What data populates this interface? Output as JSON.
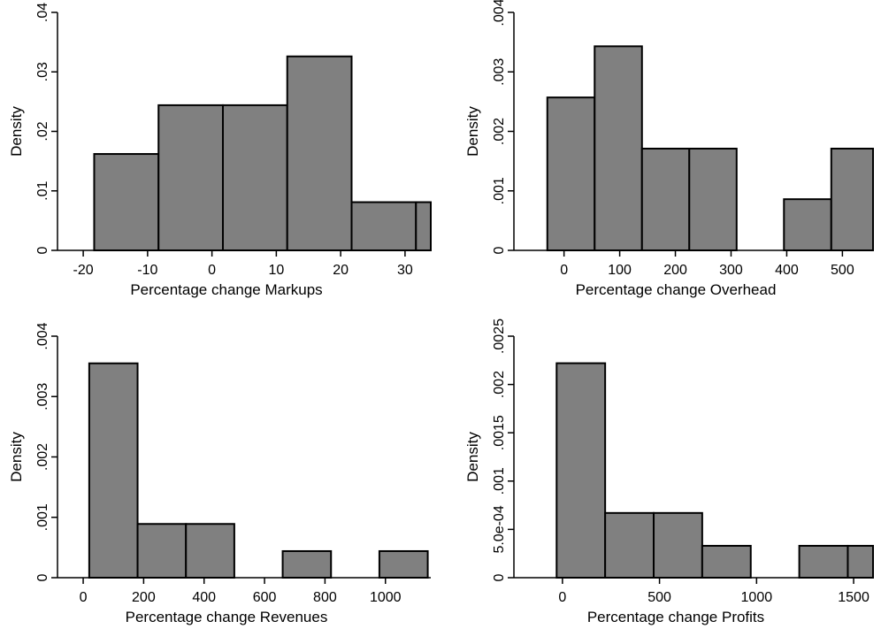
{
  "chart_data": [
    {
      "type": "bar",
      "subtype": "histogram",
      "xlabel": "Percentage change Markups",
      "ylabel": "Density",
      "xlim": [
        -24,
        34
      ],
      "ylim": [
        0,
        0.04
      ],
      "xticks": [
        -20,
        -10,
        0,
        10,
        20,
        30
      ],
      "xtick_labels": [
        "-20",
        "-10",
        "0",
        "10",
        "20",
        "30"
      ],
      "yticks": [
        0,
        0.01,
        0.02,
        0.03,
        0.04
      ],
      "ytick_labels": [
        "0",
        ".01",
        ".02",
        ".03",
        ".04"
      ],
      "bins": [
        {
          "x0": -18.3,
          "x1": -8.3,
          "density": 0.0162
        },
        {
          "x0": -8.3,
          "x1": 1.7,
          "density": 0.0244
        },
        {
          "x0": 1.7,
          "x1": 11.7,
          "density": 0.0244
        },
        {
          "x0": 11.7,
          "x1": 21.7,
          "density": 0.0326
        },
        {
          "x0": 21.7,
          "x1": 31.7,
          "density": 0.0081
        },
        {
          "x0": 31.7,
          "x1": 41.7,
          "density": 0.0081
        }
      ],
      "grid": false
    },
    {
      "type": "bar",
      "subtype": "histogram",
      "xlabel": "Percentage change Overhead",
      "ylabel": "Density",
      "xlim": [
        -90,
        555
      ],
      "ylim": [
        0,
        0.004
      ],
      "xticks": [
        0,
        100,
        200,
        300,
        400,
        500
      ],
      "xtick_labels": [
        "0",
        "100",
        "200",
        "300",
        "400",
        "500"
      ],
      "yticks": [
        0,
        0.001,
        0.002,
        0.003,
        0.004
      ],
      "ytick_labels": [
        "0",
        ".001",
        ".002",
        ".003",
        ".004"
      ],
      "bins": [
        {
          "x0": -30,
          "x1": 55,
          "density": 0.00257
        },
        {
          "x0": 55,
          "x1": 140,
          "density": 0.00343
        },
        {
          "x0": 140,
          "x1": 225,
          "density": 0.00171
        },
        {
          "x0": 225,
          "x1": 310,
          "density": 0.00171
        },
        {
          "x0": 310,
          "x1": 395,
          "density": 0
        },
        {
          "x0": 395,
          "x1": 480,
          "density": 0.00086
        },
        {
          "x0": 480,
          "x1": 565,
          "density": 0.00171
        }
      ],
      "grid": false
    },
    {
      "type": "bar",
      "subtype": "histogram",
      "xlabel": "Percentage change Revenues",
      "ylabel": "Density",
      "xlim": [
        -85,
        1150
      ],
      "ylim": [
        0,
        0.004
      ],
      "xticks": [
        0,
        200,
        400,
        600,
        800,
        1000
      ],
      "xtick_labels": [
        "0",
        "200",
        "400",
        "600",
        "800",
        "1000"
      ],
      "yticks": [
        0,
        0.001,
        0.002,
        0.003,
        0.004
      ],
      "ytick_labels": [
        "0",
        ".001",
        ".002",
        ".003",
        ".004"
      ],
      "bins": [
        {
          "x0": 20,
          "x1": 180,
          "density": 0.00355
        },
        {
          "x0": 180,
          "x1": 340,
          "density": 0.00089
        },
        {
          "x0": 340,
          "x1": 500,
          "density": 0.00089
        },
        {
          "x0": 500,
          "x1": 660,
          "density": 0
        },
        {
          "x0": 660,
          "x1": 820,
          "density": 0.00044
        },
        {
          "x0": 820,
          "x1": 980,
          "density": 0
        },
        {
          "x0": 980,
          "x1": 1140,
          "density": 0.00044
        }
      ],
      "grid": false
    },
    {
      "type": "bar",
      "subtype": "histogram",
      "xlabel": "Percentage change Profits",
      "ylabel": "Density",
      "xlim": [
        -250,
        1600
      ],
      "ylim": [
        0,
        0.0025
      ],
      "xticks": [
        0,
        500,
        1000,
        1500
      ],
      "xtick_labels": [
        "0",
        "500",
        "1000",
        "1500"
      ],
      "yticks": [
        0,
        0.0005,
        0.001,
        0.0015,
        0.002,
        0.0025
      ],
      "ytick_labels": [
        "0",
        "5.0e-04",
        ".001",
        ".0015",
        ".002",
        ".0025"
      ],
      "bins": [
        {
          "x0": -30,
          "x1": 220,
          "density": 0.00222
        },
        {
          "x0": 220,
          "x1": 470,
          "density": 0.00067
        },
        {
          "x0": 470,
          "x1": 720,
          "density": 0.00067
        },
        {
          "x0": 720,
          "x1": 970,
          "density": 0.00033
        },
        {
          "x0": 970,
          "x1": 1220,
          "density": 0
        },
        {
          "x0": 1220,
          "x1": 1470,
          "density": 0.00033
        },
        {
          "x0": 1470,
          "x1": 1720,
          "density": 0.00033
        }
      ],
      "grid": false
    }
  ]
}
